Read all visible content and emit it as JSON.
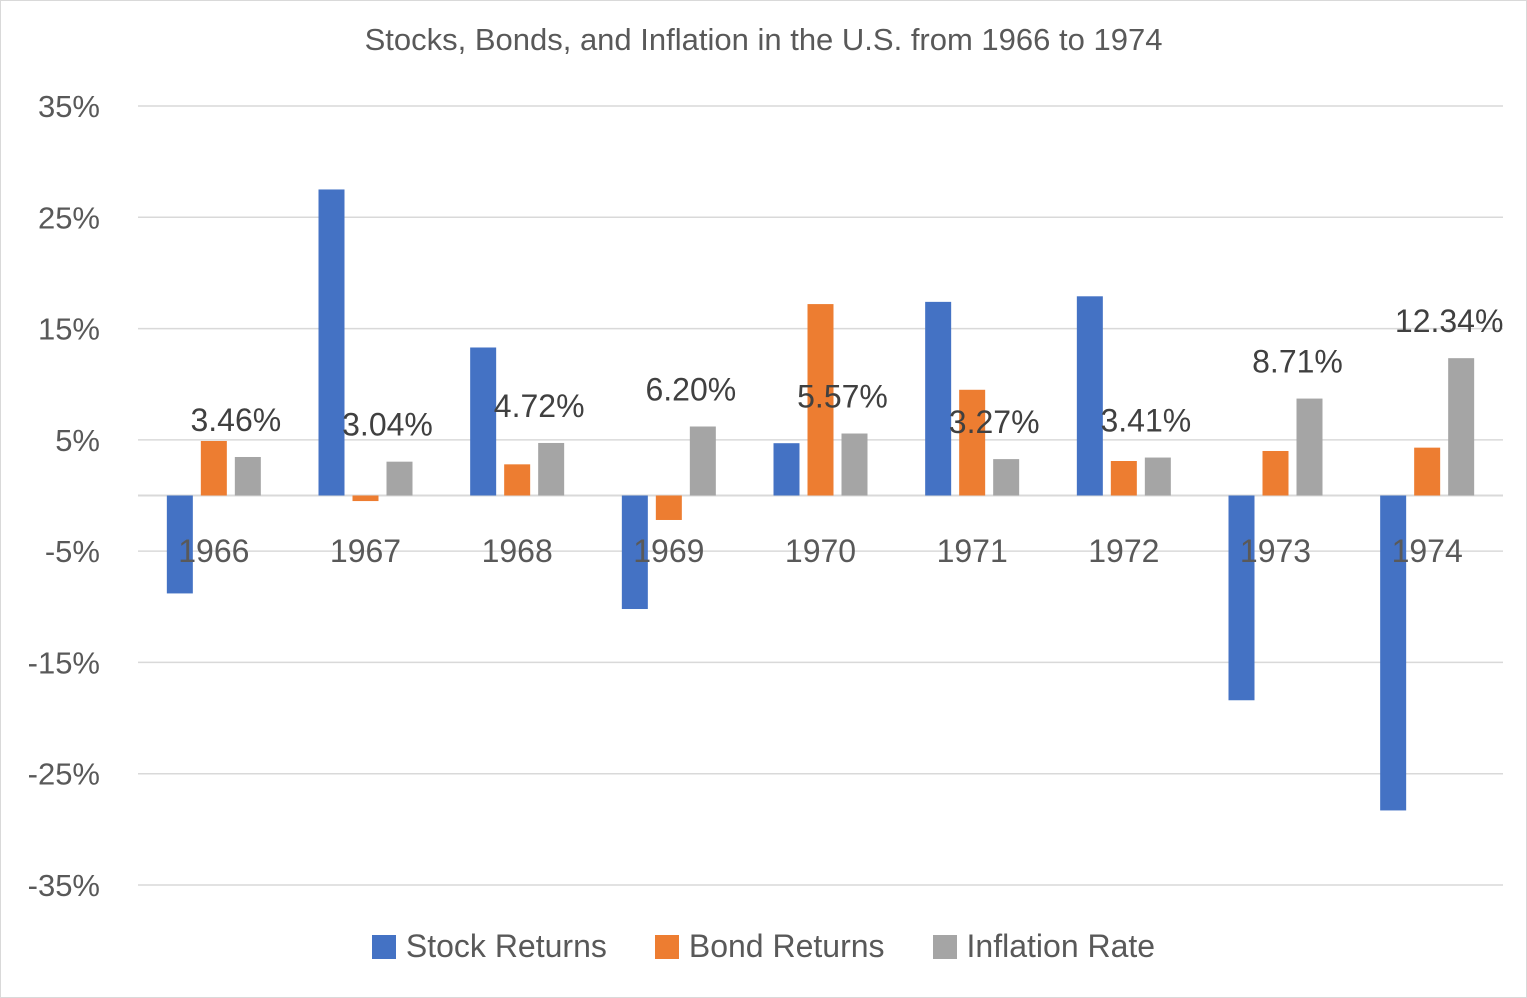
{
  "chart_data": {
    "type": "bar",
    "title": "Stocks, Bonds, and Inflation in the U.S. from 1966 to 1974",
    "categories": [
      "1966",
      "1967",
      "1968",
      "1969",
      "1970",
      "1971",
      "1972",
      "1973",
      "1974"
    ],
    "series": [
      {
        "name": "Stock Returns",
        "color": "#4472C4",
        "values": [
          -8.8,
          27.5,
          13.3,
          -10.2,
          4.7,
          17.4,
          17.9,
          -18.4,
          -28.3
        ]
      },
      {
        "name": "Bond Returns",
        "color": "#ED7D31",
        "values": [
          4.9,
          -0.5,
          2.8,
          -2.2,
          17.2,
          9.5,
          3.1,
          4.0,
          4.3
        ]
      },
      {
        "name": "Inflation Rate",
        "color": "#A5A5A5",
        "values": [
          3.46,
          3.04,
          4.72,
          6.2,
          5.57,
          3.27,
          3.41,
          8.71,
          12.34
        ]
      }
    ],
    "data_labels": [
      "3.46%",
      "3.04%",
      "4.72%",
      "6.20%",
      "5.57%",
      "3.27%",
      "3.41%",
      "8.71%",
      "12.34%"
    ],
    "y_ticks": [
      35,
      25,
      15,
      5,
      -5,
      -15,
      -25,
      -35
    ],
    "y_tick_labels": [
      "35%",
      "25%",
      "15%",
      "5%",
      "-5%",
      "-15%",
      "-25%",
      "-35%"
    ],
    "ylim": [
      -35,
      35
    ],
    "grid": true,
    "legend_position": "bottom"
  }
}
